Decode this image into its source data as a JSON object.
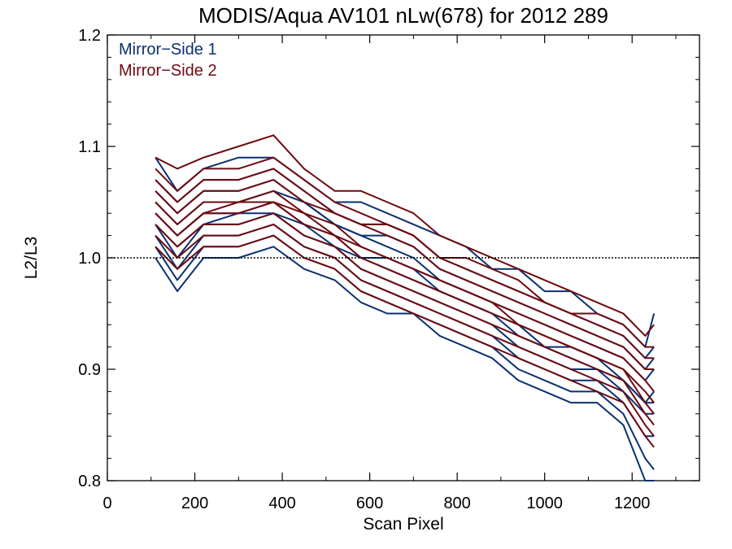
{
  "chart_data": {
    "type": "line",
    "title": "MODIS/Aqua AV101 nLw(678) for 2012 289",
    "xlabel": "Scan Pixel",
    "ylabel": "L2/L3",
    "xlim": [
      0,
      1354
    ],
    "ylim": [
      0.8,
      1.2
    ],
    "xticks": [
      "0",
      "200",
      "400",
      "600",
      "800",
      "1000",
      "1200"
    ],
    "yticks": [
      "0.8",
      "0.9",
      "1.0",
      "1.1",
      "1.2"
    ],
    "reference_line": 1.0,
    "grid": false,
    "legend_position": "top-left",
    "colors": {
      "mirror_side_1": "#0a3170",
      "mirror_side_2": "#6e0a10"
    },
    "legend": [
      {
        "label": "Mirror−Side 1",
        "color": "#0a3170"
      },
      {
        "label": "Mirror−Side 2",
        "color": "#6e0a10"
      }
    ],
    "x": [
      110,
      160,
      220,
      300,
      380,
      450,
      520,
      580,
      640,
      700,
      760,
      820,
      880,
      940,
      1000,
      1060,
      1120,
      1180,
      1230,
      1250
    ],
    "series": [
      {
        "group": "Mirror−Side 1",
        "values": [
          1.09,
          1.06,
          1.08,
          1.09,
          1.09,
          1.07,
          1.05,
          1.05,
          1.04,
          1.03,
          1.02,
          1.01,
          0.99,
          0.99,
          0.97,
          0.97,
          0.95,
          0.94,
          0.92,
          0.95
        ]
      },
      {
        "group": "Mirror−Side 1",
        "values": [
          1.07,
          1.05,
          1.07,
          1.07,
          1.08,
          1.06,
          1.04,
          1.03,
          1.03,
          1.02,
          1.0,
          0.99,
          0.98,
          0.97,
          0.96,
          0.95,
          0.94,
          0.93,
          0.91,
          0.92
        ]
      },
      {
        "group": "Mirror−Side 1",
        "values": [
          1.05,
          1.03,
          1.05,
          1.05,
          1.06,
          1.05,
          1.03,
          1.02,
          1.01,
          1.0,
          0.98,
          0.97,
          0.96,
          0.95,
          0.94,
          0.93,
          0.92,
          0.91,
          0.89,
          0.9
        ]
      },
      {
        "group": "Mirror−Side 1",
        "values": [
          1.04,
          1.02,
          1.04,
          1.04,
          1.05,
          1.03,
          1.02,
          1.0,
          1.0,
          0.99,
          0.97,
          0.96,
          0.95,
          0.94,
          0.92,
          0.92,
          0.91,
          0.89,
          0.87,
          0.88
        ]
      },
      {
        "group": "Mirror−Side 1",
        "values": [
          1.03,
          1.0,
          1.03,
          1.03,
          1.04,
          1.02,
          1.01,
          0.99,
          0.98,
          0.97,
          0.96,
          0.95,
          0.94,
          0.92,
          0.91,
          0.9,
          0.9,
          0.88,
          0.86,
          0.86
        ]
      },
      {
        "group": "Mirror−Side 1",
        "values": [
          1.02,
          0.99,
          1.02,
          1.02,
          1.03,
          1.01,
          1.0,
          0.98,
          0.97,
          0.96,
          0.95,
          0.94,
          0.93,
          0.91,
          0.9,
          0.89,
          0.89,
          0.87,
          0.84,
          0.84
        ]
      },
      {
        "group": "Mirror−Side 1",
        "values": [
          1.01,
          0.98,
          1.01,
          1.01,
          1.02,
          1.0,
          0.99,
          0.97,
          0.96,
          0.95,
          0.94,
          0.93,
          0.92,
          0.9,
          0.89,
          0.88,
          0.88,
          0.86,
          0.82,
          0.81
        ]
      },
      {
        "group": "Mirror−Side 1",
        "values": [
          1.0,
          0.97,
          1.0,
          1.0,
          1.01,
          0.99,
          0.98,
          0.96,
          0.95,
          0.95,
          0.93,
          0.92,
          0.91,
          0.89,
          0.88,
          0.87,
          0.87,
          0.85,
          0.8,
          0.8
        ]
      },
      {
        "group": "Mirror−Side 1",
        "values": [
          1.06,
          1.04,
          1.06,
          1.06,
          1.07,
          1.05,
          1.03,
          1.02,
          1.02,
          1.01,
          0.99,
          0.98,
          0.97,
          0.96,
          0.95,
          0.94,
          0.93,
          0.92,
          0.9,
          0.91
        ]
      },
      {
        "group": "Mirror−Side 1",
        "values": [
          1.03,
          1.01,
          1.03,
          1.04,
          1.04,
          1.03,
          1.01,
          1.0,
          0.99,
          0.98,
          0.97,
          0.96,
          0.95,
          0.93,
          0.92,
          0.91,
          0.9,
          0.89,
          0.87,
          0.87
        ]
      },
      {
        "group": "Mirror−Side 2",
        "values": [
          1.09,
          1.08,
          1.09,
          1.1,
          1.11,
          1.08,
          1.06,
          1.06,
          1.05,
          1.04,
          1.02,
          1.01,
          1.0,
          0.99,
          0.98,
          0.97,
          0.96,
          0.95,
          0.93,
          0.94
        ]
      },
      {
        "group": "Mirror−Side 2",
        "values": [
          1.08,
          1.06,
          1.08,
          1.08,
          1.09,
          1.07,
          1.05,
          1.04,
          1.03,
          1.02,
          1.0,
          1.0,
          0.99,
          0.98,
          0.96,
          0.95,
          0.95,
          0.94,
          0.92,
          0.92
        ]
      },
      {
        "group": "Mirror−Side 2",
        "values": [
          1.06,
          1.04,
          1.06,
          1.06,
          1.07,
          1.05,
          1.04,
          1.03,
          1.02,
          1.01,
          0.99,
          0.98,
          0.97,
          0.96,
          0.95,
          0.94,
          0.93,
          0.92,
          0.9,
          0.9
        ]
      },
      {
        "group": "Mirror−Side 2",
        "values": [
          1.05,
          1.03,
          1.05,
          1.05,
          1.06,
          1.04,
          1.03,
          1.01,
          1.0,
          0.99,
          0.98,
          0.97,
          0.96,
          0.95,
          0.94,
          0.93,
          0.92,
          0.91,
          0.89,
          0.88
        ]
      },
      {
        "group": "Mirror−Side 2",
        "values": [
          1.04,
          1.02,
          1.04,
          1.04,
          1.05,
          1.03,
          1.02,
          1.0,
          0.99,
          0.98,
          0.97,
          0.96,
          0.95,
          0.94,
          0.93,
          0.92,
          0.91,
          0.9,
          0.88,
          0.87
        ]
      },
      {
        "group": "Mirror−Side 2",
        "values": [
          1.03,
          1.01,
          1.03,
          1.03,
          1.04,
          1.02,
          1.01,
          0.99,
          0.98,
          0.97,
          0.96,
          0.95,
          0.94,
          0.93,
          0.92,
          0.91,
          0.9,
          0.89,
          0.86,
          0.85
        ]
      },
      {
        "group": "Mirror−Side 2",
        "values": [
          1.02,
          1.0,
          1.02,
          1.02,
          1.03,
          1.01,
          1.0,
          0.98,
          0.97,
          0.96,
          0.95,
          0.94,
          0.93,
          0.92,
          0.91,
          0.9,
          0.89,
          0.88,
          0.85,
          0.84
        ]
      },
      {
        "group": "Mirror−Side 2",
        "values": [
          1.01,
          0.99,
          1.01,
          1.01,
          1.02,
          1.0,
          0.99,
          0.97,
          0.96,
          0.95,
          0.94,
          0.93,
          0.92,
          0.91,
          0.9,
          0.89,
          0.88,
          0.87,
          0.84,
          0.83
        ]
      },
      {
        "group": "Mirror−Side 2",
        "values": [
          1.07,
          1.05,
          1.07,
          1.07,
          1.08,
          1.06,
          1.04,
          1.03,
          1.03,
          1.02,
          1.0,
          0.99,
          0.98,
          0.97,
          0.96,
          0.95,
          0.94,
          0.93,
          0.91,
          0.91
        ]
      },
      {
        "group": "Mirror−Side 2",
        "values": [
          1.04,
          1.02,
          1.04,
          1.05,
          1.05,
          1.04,
          1.02,
          1.01,
          1.0,
          0.99,
          0.98,
          0.97,
          0.96,
          0.94,
          0.93,
          0.92,
          0.91,
          0.9,
          0.87,
          0.86
        ]
      }
    ]
  }
}
